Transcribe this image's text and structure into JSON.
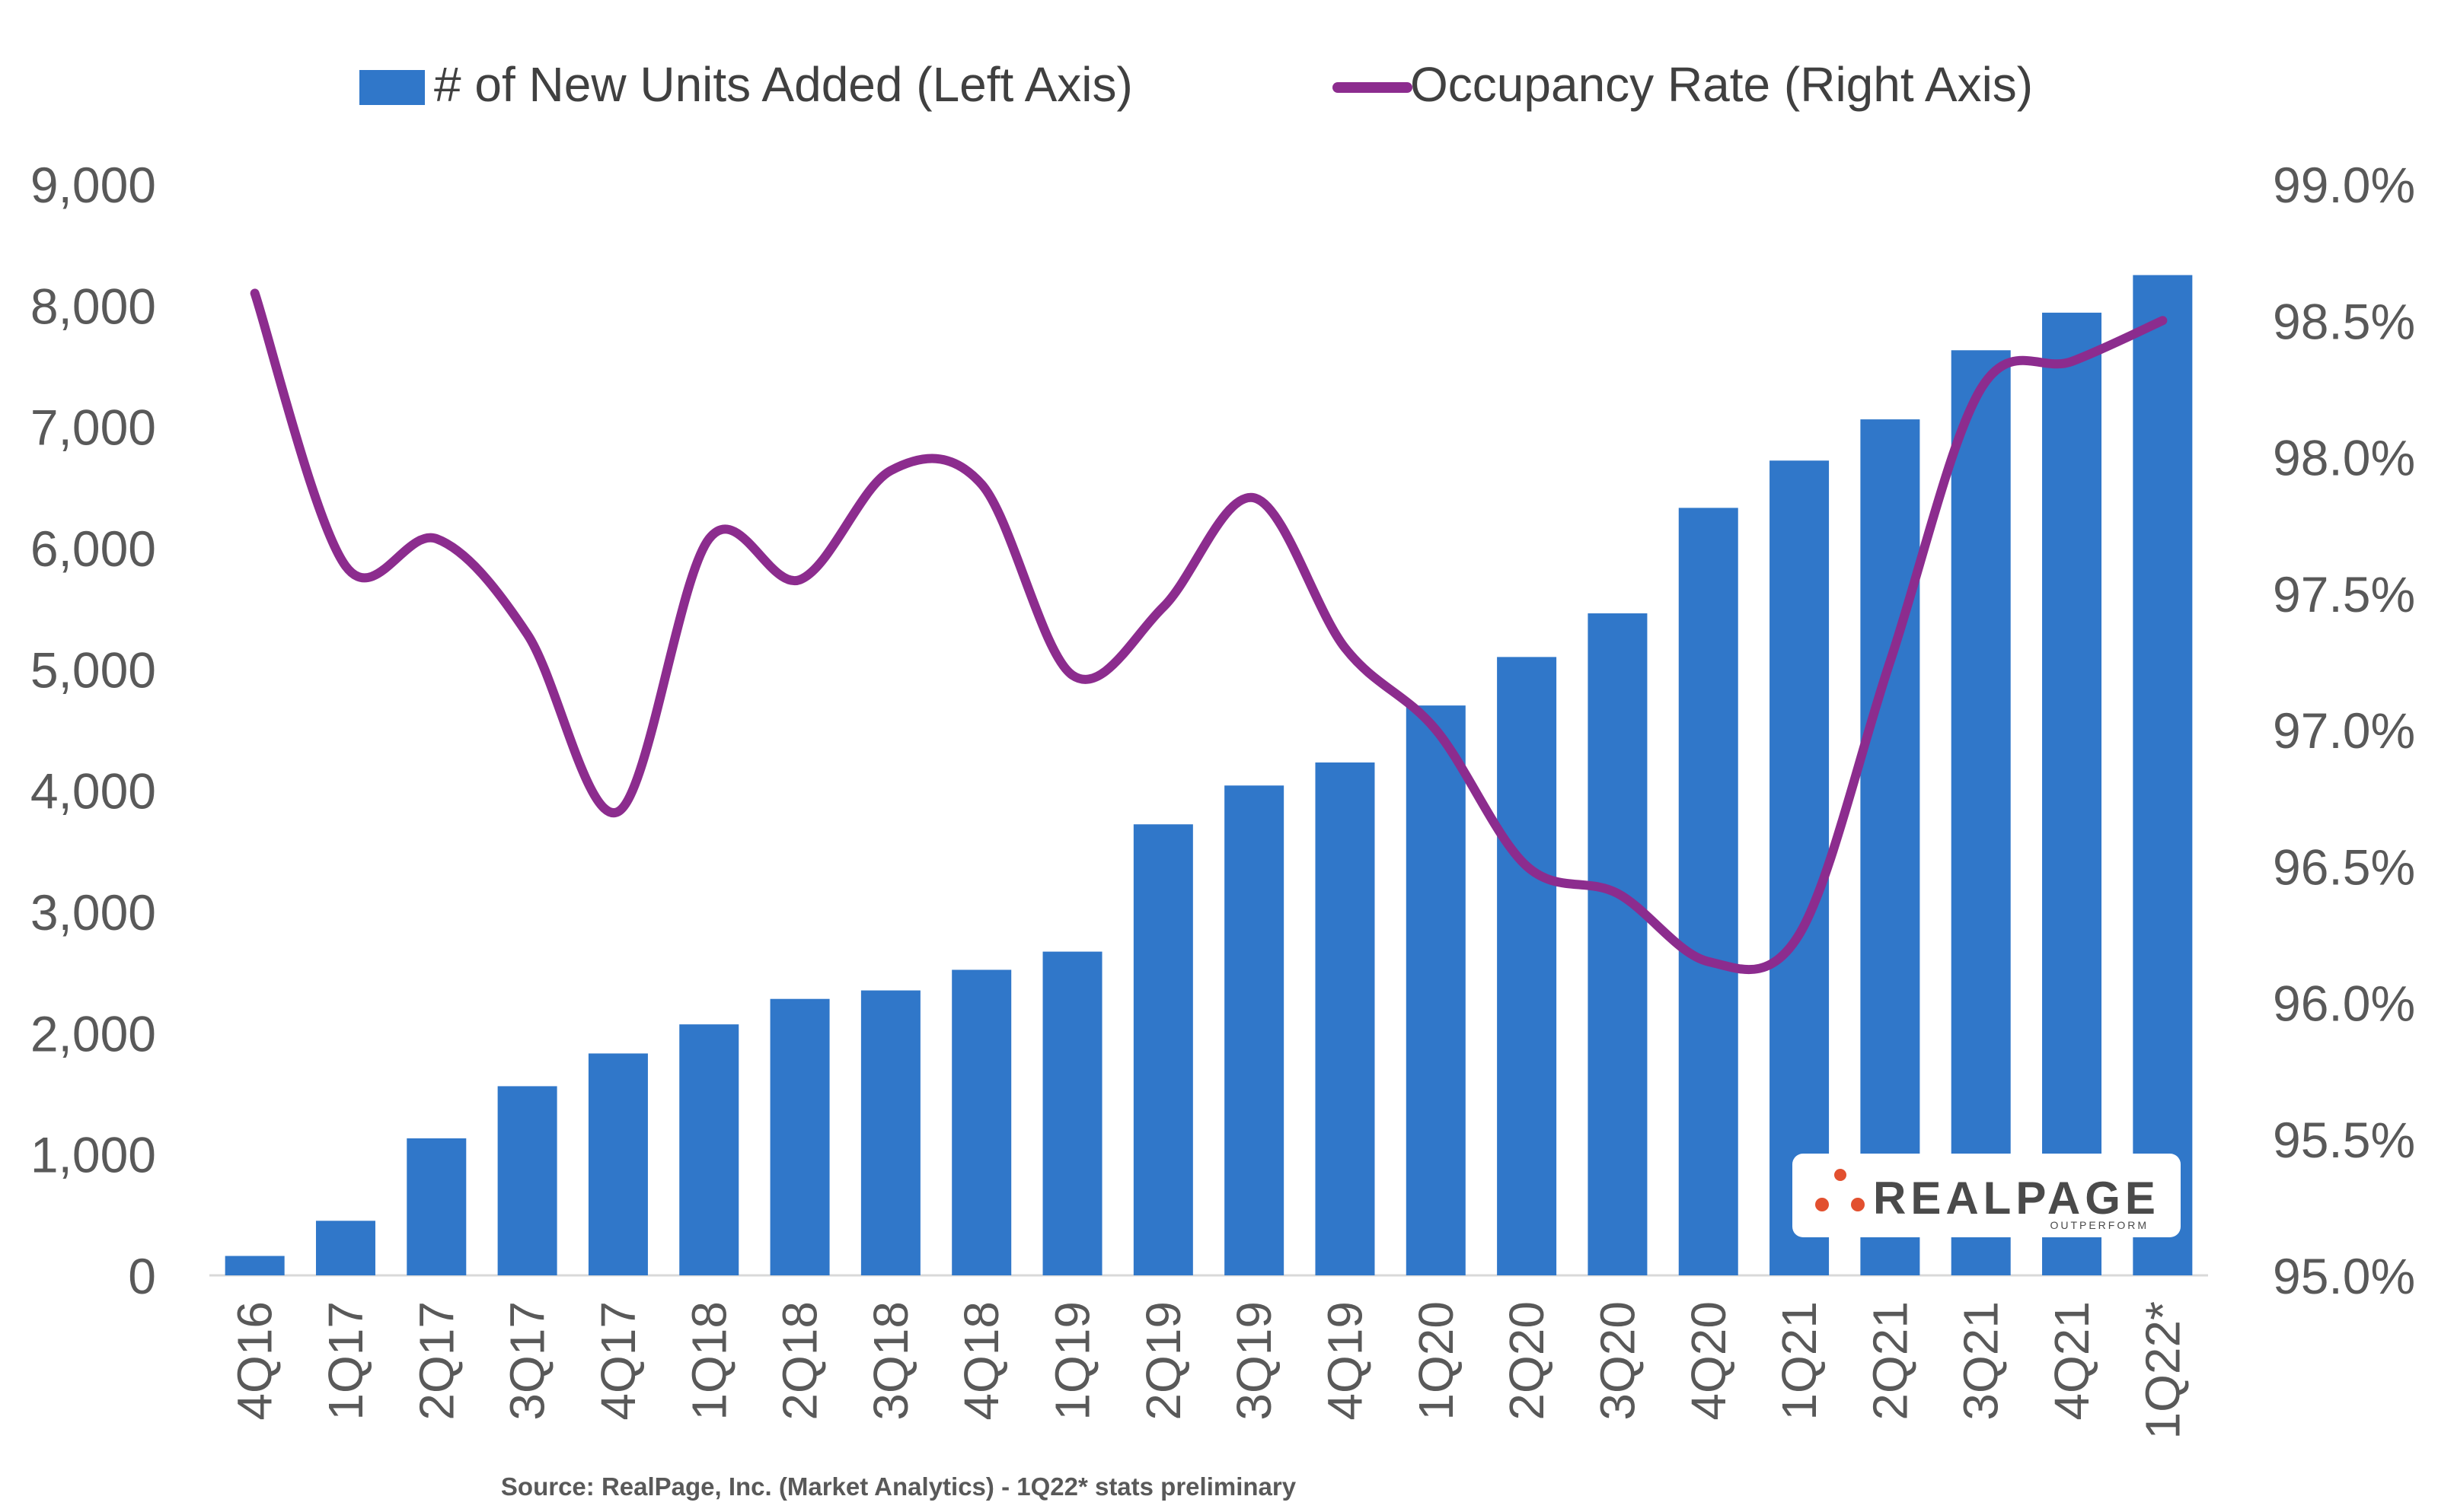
{
  "chart_data": {
    "type": "bar",
    "categories": [
      "4Q16",
      "1Q17",
      "2Q17",
      "3Q17",
      "4Q17",
      "1Q18",
      "2Q18",
      "3Q18",
      "4Q18",
      "1Q19",
      "2Q19",
      "3Q19",
      "4Q19",
      "1Q20",
      "2Q20",
      "3Q20",
      "4Q20",
      "1Q21",
      "2Q21",
      "3Q21",
      "4Q21",
      "1Q22*"
    ],
    "series": [
      {
        "name": "# of New Units Added (Left Axis)",
        "type": "bar",
        "axis": "left",
        "color": "#3077C9",
        "values": [
          160,
          450,
          1130,
          1560,
          1830,
          2070,
          2280,
          2350,
          2520,
          2670,
          3720,
          4040,
          4230,
          4700,
          5100,
          5460,
          6330,
          6720,
          7060,
          7630,
          7940,
          8250
        ]
      },
      {
        "name": "Occupancy Rate (Right Axis)",
        "type": "line",
        "axis": "right",
        "color": "#8C2C8E",
        "values": [
          98.6,
          97.6,
          97.7,
          97.35,
          96.7,
          97.7,
          97.55,
          97.95,
          97.9,
          97.2,
          97.45,
          97.85,
          97.3,
          97.0,
          96.5,
          96.4,
          96.15,
          96.25,
          97.25,
          98.25,
          98.35,
          98.5
        ]
      }
    ],
    "ylim_left": [
      0,
      9000
    ],
    "ylim_right": [
      95.0,
      99.0
    ],
    "y_left_ticks": [
      "0",
      "1,000",
      "2,000",
      "3,000",
      "4,000",
      "5,000",
      "6,000",
      "7,000",
      "8,000",
      "9,000"
    ],
    "y_right_ticks": [
      "95.0%",
      "95.5%",
      "96.0%",
      "96.5%",
      "97.0%",
      "97.5%",
      "98.0%",
      "98.5%",
      "99.0%"
    ],
    "legend_position": "top",
    "grid": false
  },
  "source_note": "Source: RealPage, Inc. (Market Analytics) - 1Q22* stats preliminary",
  "logo": {
    "text": "REALPAGE",
    "tagline": "OUTPERFORM",
    "dot_color": "#E2502F",
    "text_color": "#4A4A4A"
  }
}
